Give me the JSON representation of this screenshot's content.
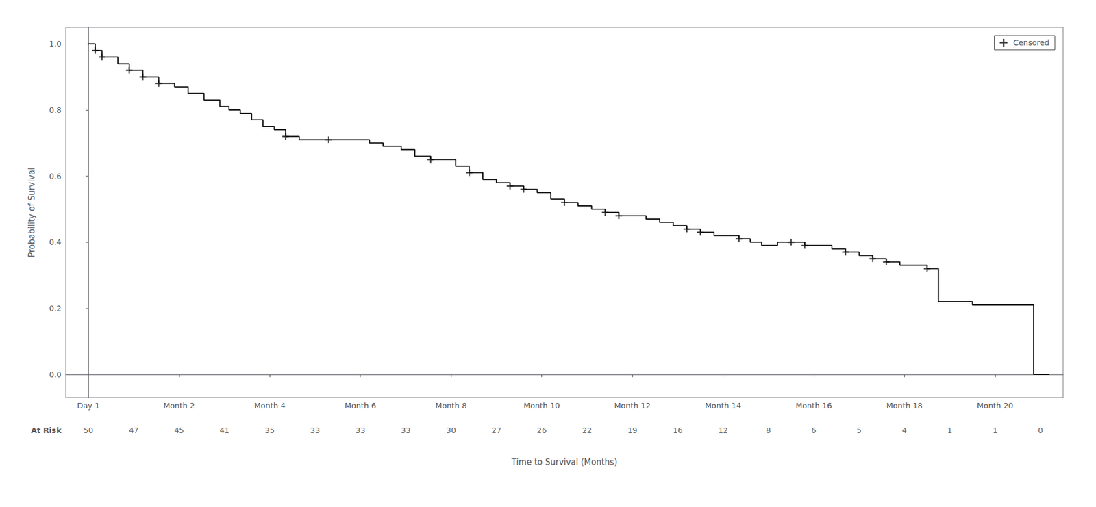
{
  "chart_data": {
    "type": "line",
    "xlabel": "Time to Survival (Months)",
    "ylabel": "Probability of Survival",
    "xlim": [
      -0.5,
      21.5
    ],
    "ylim": [
      -0.07,
      1.05
    ],
    "xticks": [
      {
        "value": 0,
        "label": "Day 1"
      },
      {
        "value": 2,
        "label": "Month 2"
      },
      {
        "value": 4,
        "label": "Month 4"
      },
      {
        "value": 6,
        "label": "Month 6"
      },
      {
        "value": 8,
        "label": "Month 8"
      },
      {
        "value": 10,
        "label": "Month 10"
      },
      {
        "value": 12,
        "label": "Month 12"
      },
      {
        "value": 14,
        "label": "Month 14"
      },
      {
        "value": 16,
        "label": "Month 16"
      },
      {
        "value": 18,
        "label": "Month 18"
      },
      {
        "value": 20,
        "label": "Month 20"
      }
    ],
    "yticks": [
      {
        "value": 0.0,
        "label": "0.0"
      },
      0.2,
      0.4,
      0.6,
      0.8,
      {
        "value": 1.0,
        "label": "1.0"
      }
    ],
    "grid": false,
    "legend": "upper right",
    "series": [
      {
        "type": "step",
        "color": "#111111",
        "x": [
          0.0,
          0.15,
          0.3,
          0.65,
          0.9,
          1.2,
          1.55,
          1.9,
          2.2,
          2.55,
          2.9,
          3.1,
          3.35,
          3.6,
          3.85,
          4.1,
          4.35,
          4.65,
          5.3,
          5.6,
          5.9,
          6.2,
          6.5,
          6.9,
          7.2,
          7.55,
          7.9,
          8.1,
          8.4,
          8.7,
          9.0,
          9.3,
          9.6,
          9.9,
          10.2,
          10.5,
          10.8,
          11.1,
          11.4,
          11.7,
          12.0,
          12.3,
          12.6,
          12.9,
          13.2,
          13.5,
          13.8,
          14.1,
          14.35,
          14.6,
          14.85,
          15.2,
          15.5,
          15.8,
          16.1,
          16.4,
          16.7,
          17.0,
          17.3,
          17.6,
          17.9,
          18.2,
          18.5,
          18.75,
          19.1,
          19.5,
          19.9,
          20.2,
          20.6,
          20.85,
          21.2
        ],
        "values": [
          1.0,
          0.98,
          0.96,
          0.94,
          0.92,
          0.9,
          0.88,
          0.87,
          0.85,
          0.83,
          0.81,
          0.8,
          0.79,
          0.77,
          0.75,
          0.74,
          0.72,
          0.71,
          0.71,
          0.71,
          0.71,
          0.7,
          0.69,
          0.68,
          0.66,
          0.65,
          0.65,
          0.63,
          0.61,
          0.59,
          0.58,
          0.57,
          0.56,
          0.55,
          0.53,
          0.52,
          0.51,
          0.5,
          0.49,
          0.48,
          0.48,
          0.47,
          0.46,
          0.45,
          0.44,
          0.43,
          0.42,
          0.42,
          0.41,
          0.4,
          0.39,
          0.4,
          0.4,
          0.39,
          0.39,
          0.38,
          0.37,
          0.36,
          0.35,
          0.34,
          0.33,
          0.33,
          0.32,
          0.22,
          0.22,
          0.21,
          0.21,
          0.21,
          0.21,
          0.0,
          0.0
        ]
      },
      {
        "name": "Censored",
        "type": "scatter",
        "marker": "+",
        "color": "#111111",
        "x": [
          0.15,
          0.3,
          0.9,
          1.2,
          1.55,
          4.35,
          5.3,
          7.55,
          8.4,
          9.3,
          9.6,
          10.5,
          11.4,
          11.7,
          13.2,
          13.5,
          14.35,
          15.5,
          15.8,
          16.7,
          17.3,
          17.6,
          18.5
        ],
        "values": [
          0.98,
          0.96,
          0.92,
          0.9,
          0.88,
          0.72,
          0.71,
          0.65,
          0.61,
          0.57,
          0.56,
          0.52,
          0.49,
          0.48,
          0.44,
          0.43,
          0.41,
          0.4,
          0.39,
          0.37,
          0.35,
          0.34,
          0.32
        ]
      }
    ],
    "at_risk": {
      "label": "At Risk",
      "x": [
        0,
        1,
        2,
        3,
        4,
        5,
        6,
        7,
        8,
        9,
        10,
        11,
        12,
        13,
        14,
        15,
        16,
        17,
        18,
        19,
        20,
        21
      ],
      "values": [
        50,
        47,
        45,
        41,
        35,
        33,
        33,
        33,
        30,
        27,
        26,
        22,
        19,
        16,
        12,
        8,
        6,
        5,
        4,
        1,
        1,
        0
      ]
    }
  }
}
